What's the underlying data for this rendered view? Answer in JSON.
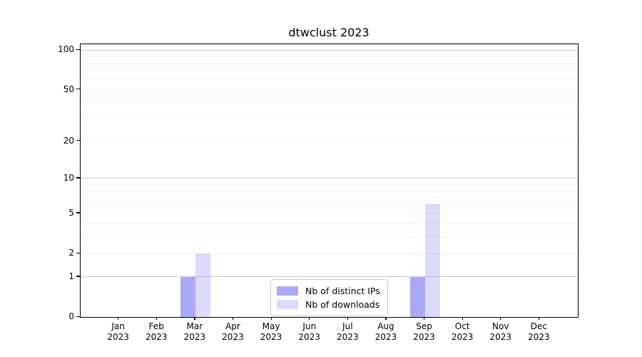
{
  "title": "dtwclust 2023",
  "chart_data": {
    "type": "bar",
    "title": "dtwclust 2023",
    "categories": [
      "Jan",
      "Feb",
      "Mar",
      "Apr",
      "May",
      "Jun",
      "Jul",
      "Aug",
      "Sep",
      "Oct",
      "Nov",
      "Dec"
    ],
    "category_year_label": "2023",
    "series": [
      {
        "name": "Nb of distinct IPs",
        "color": "#a9a9f6",
        "fill": "rgba(124,124,243,0.66)",
        "values": [
          0,
          0,
          1,
          0,
          0,
          0,
          0,
          0,
          1,
          0,
          0,
          0
        ]
      },
      {
        "name": "Nb of downloads",
        "color": "#dadaf9",
        "fill": "rgba(124,124,243,0.28)",
        "values": [
          0,
          0,
          2,
          0,
          0,
          0,
          0,
          0,
          6,
          0,
          0,
          0
        ]
      }
    ],
    "xlabel": "",
    "ylabel": "",
    "yscale": "log1p",
    "ylim": [
      0,
      111
    ],
    "yticks": [
      0,
      1,
      2,
      5,
      10,
      20,
      50,
      100
    ],
    "major_gridlines": [
      1,
      10,
      100
    ],
    "minor_gridlines": [
      2,
      3,
      4,
      5,
      6,
      7,
      8,
      9,
      20,
      30,
      40,
      50,
      60,
      70,
      80,
      90
    ],
    "grid": "horizontal",
    "legend_position": "inside-bottom-center"
  },
  "legend": {
    "items": [
      {
        "label": "Nb of distinct IPs"
      },
      {
        "label": "Nb of downloads"
      }
    ]
  },
  "colors": {
    "axis": "#000000",
    "major_grid": "#c9c9c9",
    "minor_grid": "#f0f0f0",
    "background": "#ffffff"
  }
}
